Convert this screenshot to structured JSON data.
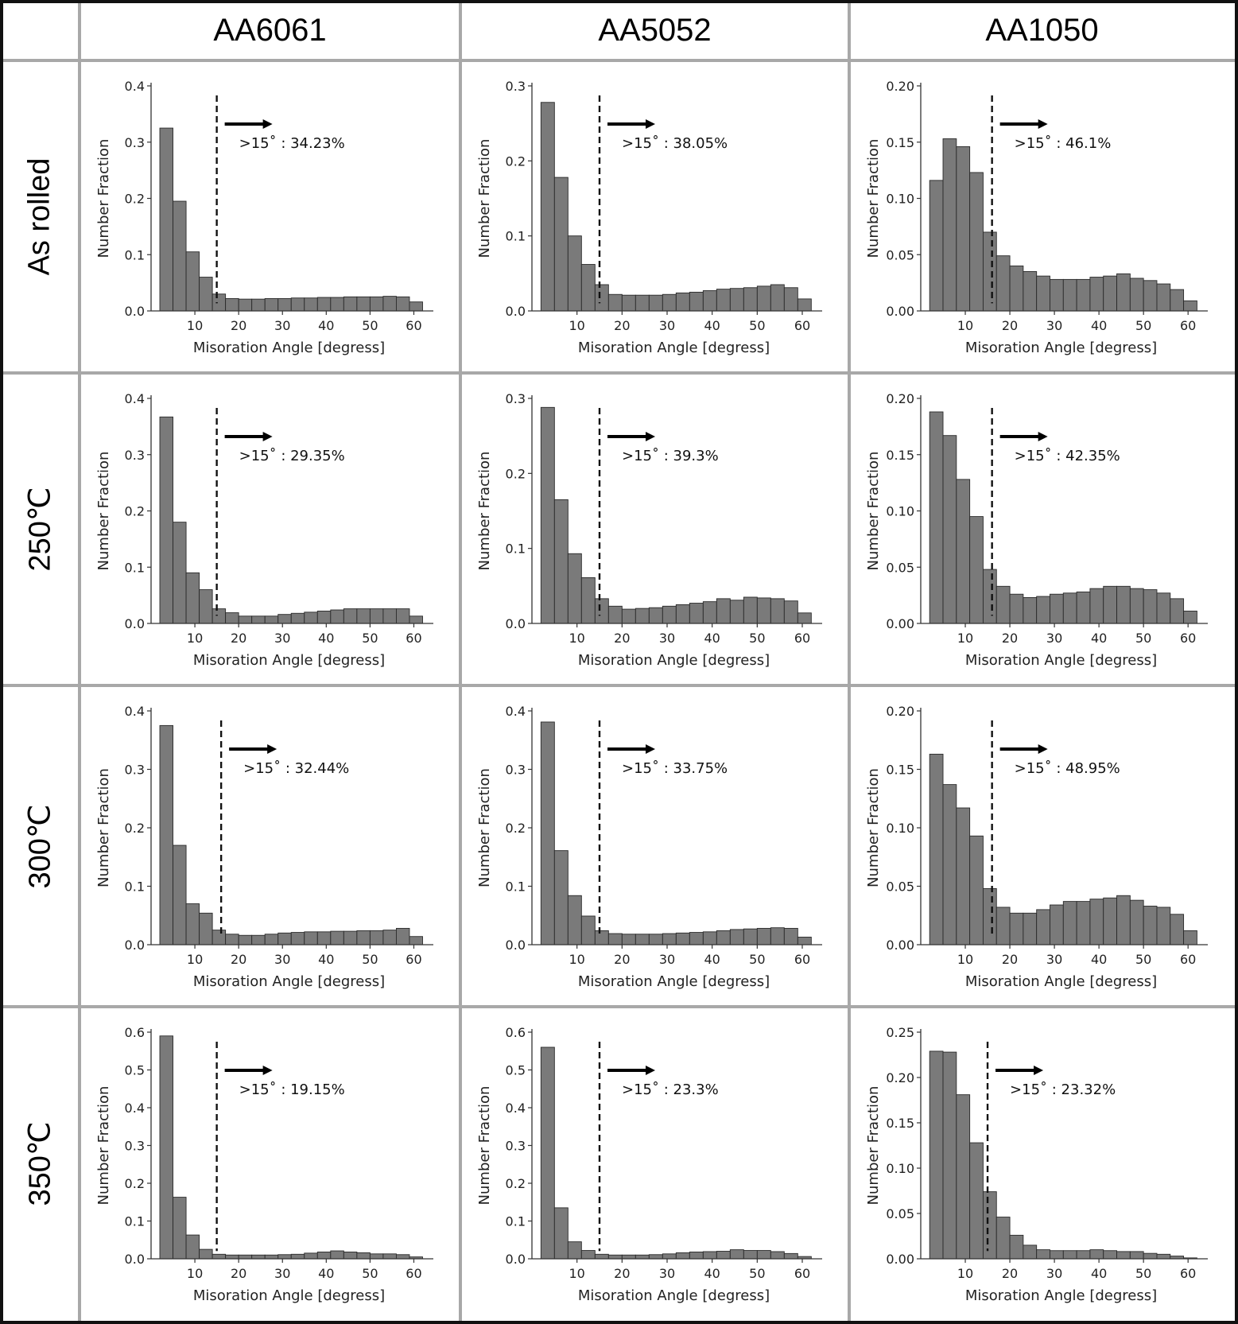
{
  "columns": [
    "AA6061",
    "AA5052",
    "AA1050"
  ],
  "rows": [
    "As rolled",
    "250℃",
    "300℃",
    "350℃"
  ],
  "chart_data": [
    {
      "type": "bar",
      "row": "As rolled",
      "column": "AA6061",
      "xlabel": "Misoration Angle [degress]",
      "ylabel": "Number Fraction",
      "xlim": [
        0,
        63
      ],
      "ylim": [
        0,
        0.4
      ],
      "yticks": [
        "0.0",
        "0.1",
        "0.2",
        "0.3",
        "0.4"
      ],
      "xticks": [
        "10",
        "20",
        "30",
        "40",
        "50",
        "60"
      ],
      "bin_width": 3,
      "bin_start": 2,
      "values": [
        0.325,
        0.195,
        0.105,
        0.06,
        0.03,
        0.022,
        0.021,
        0.021,
        0.022,
        0.022,
        0.023,
        0.023,
        0.024,
        0.024,
        0.025,
        0.025,
        0.025,
        0.026,
        0.025,
        0.016
      ],
      "annotation": ">15˚ : 34.23%",
      "threshold": 15
    },
    {
      "type": "bar",
      "row": "As rolled",
      "column": "AA5052",
      "xlabel": "Misoration Angle [degress]",
      "ylabel": "Number Fraction",
      "xlim": [
        0,
        63
      ],
      "ylim": [
        0,
        0.3
      ],
      "yticks": [
        "0.0",
        "0.1",
        "0.2",
        "0.3"
      ],
      "xticks": [
        "10",
        "20",
        "30",
        "40",
        "50",
        "60"
      ],
      "bin_width": 3,
      "bin_start": 2,
      "values": [
        0.278,
        0.178,
        0.1,
        0.062,
        0.035,
        0.022,
        0.021,
        0.021,
        0.021,
        0.022,
        0.024,
        0.025,
        0.027,
        0.029,
        0.03,
        0.031,
        0.033,
        0.035,
        0.031,
        0.016
      ],
      "annotation": ">15˚ : 38.05%",
      "threshold": 15
    },
    {
      "type": "bar",
      "row": "As rolled",
      "column": "AA1050",
      "xlabel": "Misoration Angle [degress]",
      "ylabel": "Number Fraction",
      "xlim": [
        0,
        63
      ],
      "ylim": [
        0,
        0.2
      ],
      "yticks": [
        "0.00",
        "0.05",
        "0.10",
        "0.15",
        "0.20"
      ],
      "xticks": [
        "10",
        "20",
        "30",
        "40",
        "50",
        "60"
      ],
      "bin_width": 3,
      "bin_start": 2,
      "values": [
        0.116,
        0.153,
        0.146,
        0.123,
        0.07,
        0.049,
        0.04,
        0.035,
        0.031,
        0.028,
        0.028,
        0.028,
        0.03,
        0.031,
        0.033,
        0.029,
        0.027,
        0.024,
        0.019,
        0.009
      ],
      "annotation": ">15˚ : 46.1%",
      "threshold": 16
    },
    {
      "type": "bar",
      "row": "250℃",
      "column": "AA6061",
      "xlabel": "Misoration Angle [degress]",
      "ylabel": "Number Fraction",
      "xlim": [
        0,
        63
      ],
      "ylim": [
        0,
        0.4
      ],
      "yticks": [
        "0.0",
        "0.1",
        "0.2",
        "0.3",
        "0.4"
      ],
      "xticks": [
        "10",
        "20",
        "30",
        "40",
        "50",
        "60"
      ],
      "bin_width": 3,
      "bin_start": 2,
      "values": [
        0.367,
        0.18,
        0.09,
        0.06,
        0.026,
        0.019,
        0.013,
        0.013,
        0.013,
        0.016,
        0.018,
        0.02,
        0.022,
        0.024,
        0.026,
        0.026,
        0.026,
        0.026,
        0.026,
        0.013
      ],
      "annotation": ">15˚ : 29.35%",
      "threshold": 15
    },
    {
      "type": "bar",
      "row": "250℃",
      "column": "AA5052",
      "xlabel": "Misoration Angle [degress]",
      "ylabel": "Number Fraction",
      "xlim": [
        0,
        63
      ],
      "ylim": [
        0,
        0.3
      ],
      "yticks": [
        "0.0",
        "0.1",
        "0.2",
        "0.3"
      ],
      "xticks": [
        "10",
        "20",
        "30",
        "40",
        "50",
        "60"
      ],
      "bin_width": 3,
      "bin_start": 2,
      "values": [
        0.288,
        0.165,
        0.093,
        0.061,
        0.033,
        0.023,
        0.019,
        0.02,
        0.021,
        0.023,
        0.025,
        0.027,
        0.029,
        0.033,
        0.031,
        0.035,
        0.034,
        0.033,
        0.03,
        0.014
      ],
      "annotation": ">15˚ : 39.3%",
      "threshold": 15
    },
    {
      "type": "bar",
      "row": "250℃",
      "column": "AA1050",
      "xlabel": "Misoration Angle [degress]",
      "ylabel": "Number Fraction",
      "xlim": [
        0,
        63
      ],
      "ylim": [
        0,
        0.2
      ],
      "yticks": [
        "0.00",
        "0.05",
        "0.10",
        "0.15",
        "0.20"
      ],
      "xticks": [
        "10",
        "20",
        "30",
        "40",
        "50",
        "60"
      ],
      "bin_width": 3,
      "bin_start": 2,
      "values": [
        0.188,
        0.167,
        0.128,
        0.095,
        0.048,
        0.033,
        0.026,
        0.023,
        0.024,
        0.026,
        0.027,
        0.028,
        0.031,
        0.033,
        0.033,
        0.031,
        0.03,
        0.027,
        0.022,
        0.011
      ],
      "annotation": ">15˚ : 42.35%",
      "threshold": 16
    },
    {
      "type": "bar",
      "row": "300℃",
      "column": "AA6061",
      "xlabel": "Misoration Angle [degress]",
      "ylabel": "Number Fraction",
      "xlim": [
        0,
        63
      ],
      "ylim": [
        0,
        0.4
      ],
      "yticks": [
        "0.0",
        "0.1",
        "0.2",
        "0.3",
        "0.4"
      ],
      "xticks": [
        "10",
        "20",
        "30",
        "40",
        "50",
        "60"
      ],
      "bin_width": 3,
      "bin_start": 2,
      "values": [
        0.375,
        0.17,
        0.07,
        0.054,
        0.025,
        0.018,
        0.016,
        0.016,
        0.018,
        0.02,
        0.021,
        0.022,
        0.022,
        0.023,
        0.023,
        0.024,
        0.024,
        0.025,
        0.028,
        0.014
      ],
      "annotation": ">15˚ : 32.44%",
      "threshold": 16
    },
    {
      "type": "bar",
      "row": "300℃",
      "column": "AA5052",
      "xlabel": "Misoration Angle [degress]",
      "ylabel": "Number Fraction",
      "xlim": [
        0,
        63
      ],
      "ylim": [
        0,
        0.4
      ],
      "yticks": [
        "0.0",
        "0.1",
        "0.2",
        "0.3",
        "0.4"
      ],
      "xticks": [
        "10",
        "20",
        "30",
        "40",
        "50",
        "60"
      ],
      "bin_width": 3,
      "bin_start": 2,
      "values": [
        0.381,
        0.161,
        0.084,
        0.049,
        0.024,
        0.019,
        0.018,
        0.018,
        0.018,
        0.019,
        0.02,
        0.021,
        0.022,
        0.024,
        0.026,
        0.027,
        0.028,
        0.029,
        0.028,
        0.013
      ],
      "annotation": ">15˚ : 33.75%",
      "threshold": 15
    },
    {
      "type": "bar",
      "row": "300℃",
      "column": "AA1050",
      "xlabel": "Misoration Angle [degress]",
      "ylabel": "Number Fraction",
      "xlim": [
        0,
        63
      ],
      "ylim": [
        0,
        0.2
      ],
      "yticks": [
        "0.00",
        "0.05",
        "0.10",
        "0.15",
        "0.20"
      ],
      "xticks": [
        "10",
        "20",
        "30",
        "40",
        "50",
        "60"
      ],
      "bin_width": 3,
      "bin_start": 2,
      "values": [
        0.163,
        0.137,
        0.117,
        0.093,
        0.048,
        0.032,
        0.027,
        0.027,
        0.03,
        0.034,
        0.037,
        0.037,
        0.039,
        0.04,
        0.042,
        0.038,
        0.033,
        0.032,
        0.026,
        0.012
      ],
      "annotation": ">15˚ : 48.95%",
      "threshold": 16
    },
    {
      "type": "bar",
      "row": "350℃",
      "column": "AA6061",
      "xlabel": "Misoration Angle [degress]",
      "ylabel": "Number Fraction",
      "xlim": [
        0,
        63
      ],
      "ylim": [
        0,
        0.6
      ],
      "yticks": [
        "0.0",
        "0.1",
        "0.2",
        "0.3",
        "0.4",
        "0.5",
        "0.6"
      ],
      "xticks": [
        "10",
        "20",
        "30",
        "40",
        "50",
        "60"
      ],
      "bin_width": 3,
      "bin_start": 2,
      "values": [
        0.59,
        0.163,
        0.063,
        0.025,
        0.012,
        0.01,
        0.01,
        0.01,
        0.01,
        0.011,
        0.012,
        0.015,
        0.018,
        0.021,
        0.018,
        0.016,
        0.013,
        0.013,
        0.011,
        0.005
      ],
      "annotation": ">15˚ : 19.15%",
      "threshold": 15
    },
    {
      "type": "bar",
      "row": "350℃",
      "column": "AA5052",
      "xlabel": "Misoration Angle [degress]",
      "ylabel": "Number Fraction",
      "xlim": [
        0,
        63
      ],
      "ylim": [
        0,
        0.6
      ],
      "yticks": [
        "0.0",
        "0.1",
        "0.2",
        "0.3",
        "0.4",
        "0.5",
        "0.6"
      ],
      "xticks": [
        "10",
        "20",
        "30",
        "40",
        "50",
        "60"
      ],
      "bin_width": 3,
      "bin_start": 2,
      "values": [
        0.56,
        0.135,
        0.045,
        0.022,
        0.012,
        0.01,
        0.01,
        0.01,
        0.011,
        0.013,
        0.016,
        0.018,
        0.019,
        0.02,
        0.024,
        0.022,
        0.022,
        0.019,
        0.014,
        0.006
      ],
      "annotation": ">15˚ : 23.3%",
      "threshold": 15
    },
    {
      "type": "bar",
      "row": "350℃",
      "column": "AA1050",
      "xlabel": "Misoration Angle [degress]",
      "ylabel": "Number Fraction",
      "xlim": [
        0,
        63
      ],
      "ylim": [
        0,
        0.25
      ],
      "yticks": [
        "0.00",
        "0.05",
        "0.10",
        "0.15",
        "0.20",
        "0.25"
      ],
      "xticks": [
        "10",
        "20",
        "30",
        "40",
        "50",
        "60"
      ],
      "bin_width": 3,
      "bin_start": 2,
      "values": [
        0.229,
        0.228,
        0.181,
        0.128,
        0.074,
        0.046,
        0.026,
        0.015,
        0.01,
        0.009,
        0.009,
        0.009,
        0.01,
        0.009,
        0.008,
        0.008,
        0.006,
        0.005,
        0.003,
        0.001
      ],
      "annotation": ">15˚ : 23.32%",
      "threshold": 15
    }
  ]
}
